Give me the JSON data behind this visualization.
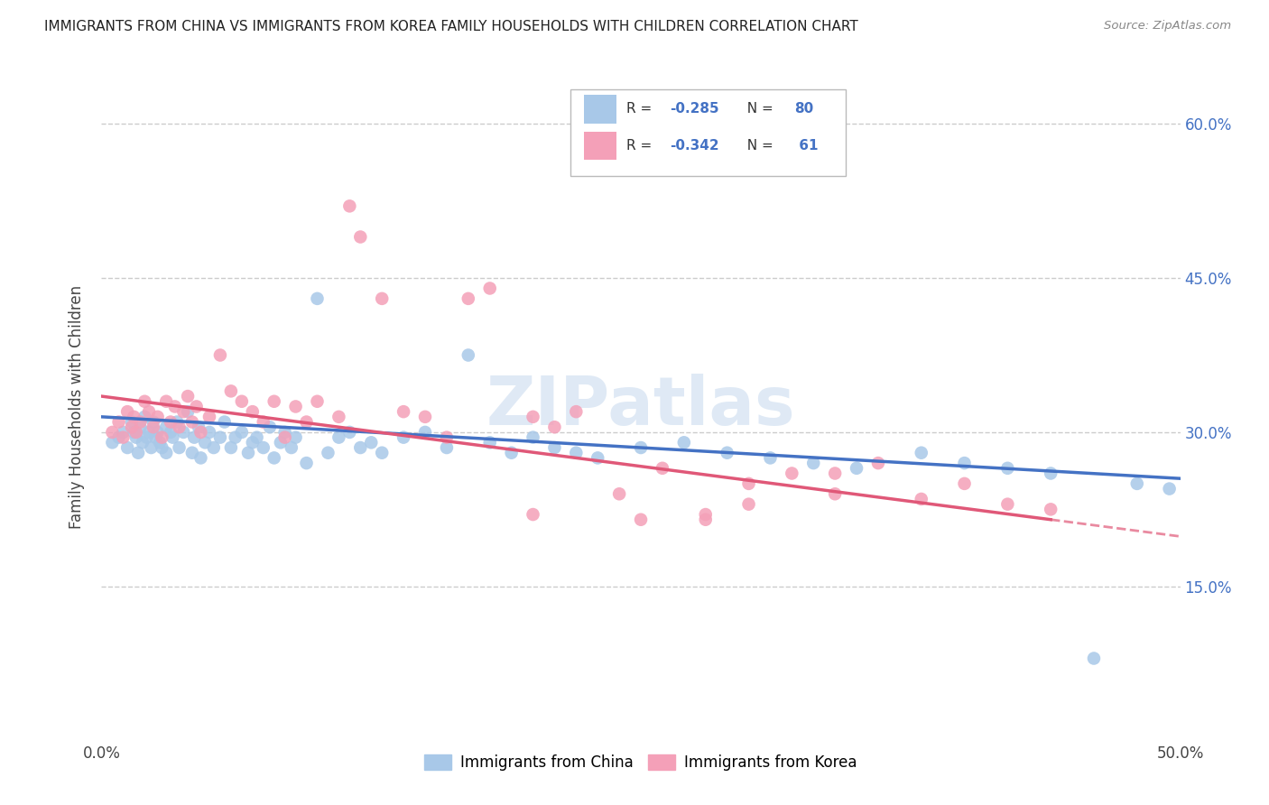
{
  "title": "IMMIGRANTS FROM CHINA VS IMMIGRANTS FROM KOREA FAMILY HOUSEHOLDS WITH CHILDREN CORRELATION CHART",
  "source": "Source: ZipAtlas.com",
  "ylabel": "Family Households with Children",
  "y_ticks": [
    0.15,
    0.3,
    0.45,
    0.6
  ],
  "y_tick_labels": [
    "15.0%",
    "30.0%",
    "45.0%",
    "60.0%"
  ],
  "xlim": [
    0.0,
    0.5
  ],
  "ylim": [
    0.0,
    0.65
  ],
  "china_R": -0.285,
  "china_N": 80,
  "korea_R": -0.342,
  "korea_N": 61,
  "china_color": "#a8c8e8",
  "china_line_color": "#4472c4",
  "korea_color": "#f4a0b8",
  "korea_line_color": "#e05878",
  "legend_label_china": "Immigrants from China",
  "legend_label_korea": "Immigrants from Korea",
  "watermark": "ZIPatlas",
  "background_color": "#ffffff",
  "china_x": [
    0.005,
    0.008,
    0.01,
    0.012,
    0.014,
    0.015,
    0.016,
    0.017,
    0.018,
    0.019,
    0.02,
    0.021,
    0.022,
    0.023,
    0.024,
    0.025,
    0.026,
    0.027,
    0.028,
    0.03,
    0.03,
    0.032,
    0.033,
    0.035,
    0.036,
    0.038,
    0.04,
    0.042,
    0.043,
    0.045,
    0.046,
    0.048,
    0.05,
    0.052,
    0.055,
    0.057,
    0.06,
    0.062,
    0.065,
    0.068,
    0.07,
    0.072,
    0.075,
    0.078,
    0.08,
    0.083,
    0.085,
    0.088,
    0.09,
    0.095,
    0.1,
    0.105,
    0.11,
    0.115,
    0.12,
    0.125,
    0.13,
    0.14,
    0.15,
    0.16,
    0.17,
    0.18,
    0.19,
    0.2,
    0.21,
    0.22,
    0.23,
    0.25,
    0.27,
    0.29,
    0.31,
    0.33,
    0.35,
    0.38,
    0.4,
    0.42,
    0.44,
    0.46,
    0.48,
    0.495
  ],
  "china_y": [
    0.29,
    0.295,
    0.3,
    0.285,
    0.31,
    0.3,
    0.295,
    0.28,
    0.305,
    0.29,
    0.315,
    0.295,
    0.3,
    0.285,
    0.31,
    0.295,
    0.3,
    0.29,
    0.285,
    0.305,
    0.28,
    0.3,
    0.295,
    0.31,
    0.285,
    0.3,
    0.32,
    0.28,
    0.295,
    0.305,
    0.275,
    0.29,
    0.3,
    0.285,
    0.295,
    0.31,
    0.285,
    0.295,
    0.3,
    0.28,
    0.29,
    0.295,
    0.285,
    0.305,
    0.275,
    0.29,
    0.3,
    0.285,
    0.295,
    0.27,
    0.43,
    0.28,
    0.295,
    0.3,
    0.285,
    0.29,
    0.28,
    0.295,
    0.3,
    0.285,
    0.375,
    0.29,
    0.28,
    0.295,
    0.285,
    0.28,
    0.275,
    0.285,
    0.29,
    0.28,
    0.275,
    0.27,
    0.265,
    0.28,
    0.27,
    0.265,
    0.26,
    0.08,
    0.25,
    0.245
  ],
  "korea_x": [
    0.005,
    0.008,
    0.01,
    0.012,
    0.014,
    0.015,
    0.016,
    0.018,
    0.02,
    0.022,
    0.024,
    0.026,
    0.028,
    0.03,
    0.032,
    0.034,
    0.036,
    0.038,
    0.04,
    0.042,
    0.044,
    0.046,
    0.05,
    0.055,
    0.06,
    0.065,
    0.07,
    0.075,
    0.08,
    0.085,
    0.09,
    0.095,
    0.1,
    0.11,
    0.115,
    0.12,
    0.13,
    0.14,
    0.15,
    0.16,
    0.17,
    0.18,
    0.2,
    0.21,
    0.22,
    0.24,
    0.26,
    0.28,
    0.3,
    0.32,
    0.34,
    0.36,
    0.38,
    0.4,
    0.42,
    0.44,
    0.34,
    0.2,
    0.25,
    0.3,
    0.28
  ],
  "korea_y": [
    0.3,
    0.31,
    0.295,
    0.32,
    0.305,
    0.315,
    0.3,
    0.31,
    0.33,
    0.32,
    0.305,
    0.315,
    0.295,
    0.33,
    0.31,
    0.325,
    0.305,
    0.32,
    0.335,
    0.31,
    0.325,
    0.3,
    0.315,
    0.375,
    0.34,
    0.33,
    0.32,
    0.31,
    0.33,
    0.295,
    0.325,
    0.31,
    0.33,
    0.315,
    0.52,
    0.49,
    0.43,
    0.32,
    0.315,
    0.295,
    0.43,
    0.44,
    0.315,
    0.305,
    0.32,
    0.24,
    0.265,
    0.22,
    0.25,
    0.26,
    0.24,
    0.27,
    0.235,
    0.25,
    0.23,
    0.225,
    0.26,
    0.22,
    0.215,
    0.23,
    0.215
  ]
}
